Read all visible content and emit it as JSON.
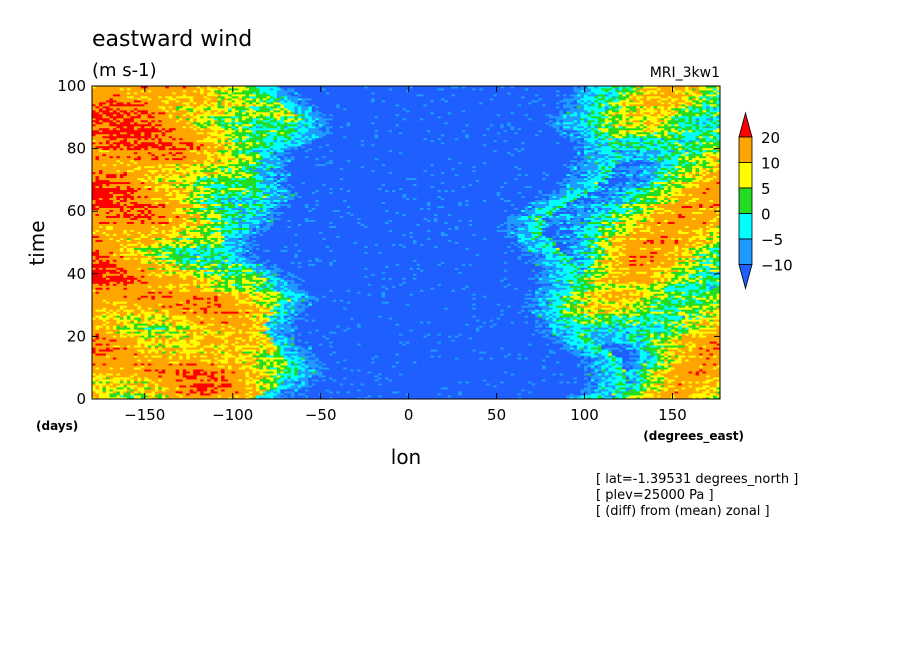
{
  "chart_data": {
    "type": "heatmap",
    "title": "eastward wind",
    "units": "(m s-1)",
    "model": "MRI_3kw1",
    "xlabel": "lon",
    "ylabel": "time",
    "x_unit": "(degrees_east)",
    "y_unit": "(days)",
    "xlim": [
      -180,
      177
    ],
    "ylim": [
      0,
      100
    ],
    "x_ticks": [
      -150,
      -100,
      -50,
      0,
      50,
      100,
      150
    ],
    "y_ticks": [
      0,
      20,
      40,
      60,
      80,
      100
    ],
    "levels": [
      -10,
      -5,
      0,
      5,
      10,
      20
    ],
    "colors": [
      "#1f5fff",
      "#1e9bff",
      "#00ffff",
      "#22dd22",
      "#ffff00",
      "#ffa500",
      "#ff0000"
    ],
    "legend_position": "right",
    "notes": [
      "[ lat=-1.39531 degrees_north ]",
      "[ plev=25000 Pa ]",
      "[ (diff) from (mean) zonal ]"
    ],
    "field_summary": {
      "west_boundary_lon": -85,
      "east_boundary_lon": 100,
      "west_region_value": 15,
      "east_region_value": 8,
      "central_region_value": -12
    }
  }
}
